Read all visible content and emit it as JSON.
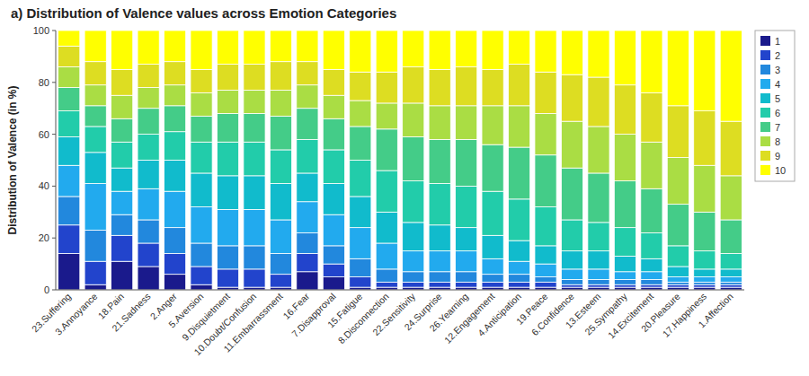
{
  "chart_data": {
    "type": "bar",
    "stacked": true,
    "title": "a) Distribution of Valence values across Emotion Categories",
    "y_label": "Distribution of Valence (in %)",
    "categories": [
      "23.Suffering",
      "3.Annoyance",
      "18.Pain",
      "21.Sadness",
      "2.Anger",
      "5.Aversion",
      "9.Disquietment",
      "10.Doubt/Confusion",
      "11.Embarrassment",
      "16.Fear",
      "7.Disapproval",
      "15.Fatigue",
      "8.Disconnection",
      "22.Sensitivity",
      "24.Surprise",
      "26.Yearning",
      "12.Engagement",
      "4.Anticipation",
      "19.Peace",
      "6.Confidence",
      "13.Esteem",
      "25.Sympathy",
      "14.Excitement",
      "20.Pleasure",
      "17.Happiness",
      "1.Affection"
    ],
    "series": [
      {
        "name": "1",
        "color": "#1a1a8c",
        "values": [
          14,
          2,
          11,
          9,
          6,
          2,
          1,
          1,
          1,
          7,
          5,
          1,
          1,
          1,
          1,
          1,
          1,
          1,
          1,
          1,
          1,
          1,
          1,
          1,
          1,
          1
        ]
      },
      {
        "name": "2",
        "color": "#2244cc",
        "values": [
          11,
          9,
          10,
          9,
          8,
          7,
          7,
          7,
          5,
          7,
          5,
          4,
          2,
          2,
          2,
          2,
          2,
          2,
          2,
          1,
          1,
          1,
          1,
          1,
          1,
          1
        ]
      },
      {
        "name": "3",
        "color": "#2288dd",
        "values": [
          11,
          12,
          8,
          9,
          10,
          9,
          9,
          9,
          8,
          8,
          7,
          7,
          5,
          4,
          4,
          4,
          3,
          3,
          2,
          2,
          2,
          2,
          2,
          1,
          1,
          1
        ]
      },
      {
        "name": "4",
        "color": "#22aaee",
        "values": [
          12,
          18,
          9,
          12,
          14,
          14,
          14,
          14,
          13,
          12,
          12,
          12,
          10,
          8,
          8,
          8,
          6,
          5,
          5,
          4,
          4,
          3,
          3,
          2,
          2,
          2
        ]
      },
      {
        "name": "5",
        "color": "#11bbcc",
        "values": [
          11,
          12,
          9,
          11,
          12,
          13,
          13,
          13,
          14,
          11,
          12,
          12,
          12,
          11,
          10,
          9,
          9,
          8,
          7,
          7,
          7,
          6,
          5,
          4,
          3,
          3
        ]
      },
      {
        "name": "6",
        "color": "#22ccaa",
        "values": [
          10,
          10,
          10,
          10,
          11,
          12,
          13,
          13,
          13,
          13,
          13,
          14,
          16,
          16,
          16,
          16,
          17,
          16,
          15,
          12,
          11,
          11,
          10,
          8,
          7,
          6
        ]
      },
      {
        "name": "7",
        "color": "#44cc88",
        "values": [
          9,
          8,
          9,
          10,
          10,
          10,
          11,
          11,
          13,
          12,
          12,
          13,
          16,
          17,
          17,
          18,
          18,
          20,
          20,
          20,
          19,
          18,
          17,
          16,
          15,
          13
        ]
      },
      {
        "name": "8",
        "color": "#aadd44",
        "values": [
          8,
          8,
          9,
          8,
          8,
          9,
          9,
          9,
          10,
          9,
          9,
          10,
          10,
          13,
          13,
          13,
          15,
          16,
          16,
          18,
          18,
          18,
          18,
          18,
          18,
          17
        ]
      },
      {
        "name": "9",
        "color": "#dddd22",
        "values": [
          8,
          9,
          10,
          9,
          9,
          9,
          10,
          10,
          11,
          9,
          10,
          11,
          12,
          14,
          14,
          15,
          14,
          16,
          16,
          18,
          19,
          19,
          19,
          20,
          21,
          21
        ]
      },
      {
        "name": "10",
        "color": "#ffff00",
        "values": [
          6,
          12,
          15,
          13,
          12,
          15,
          13,
          13,
          12,
          12,
          15,
          16,
          16,
          14,
          15,
          14,
          15,
          13,
          16,
          17,
          18,
          21,
          24,
          29,
          31,
          35
        ]
      }
    ],
    "ylim": [
      0,
      100
    ],
    "yticks": [
      0,
      20,
      40,
      60,
      80,
      100
    ],
    "grid": false,
    "legend": "upper right"
  }
}
